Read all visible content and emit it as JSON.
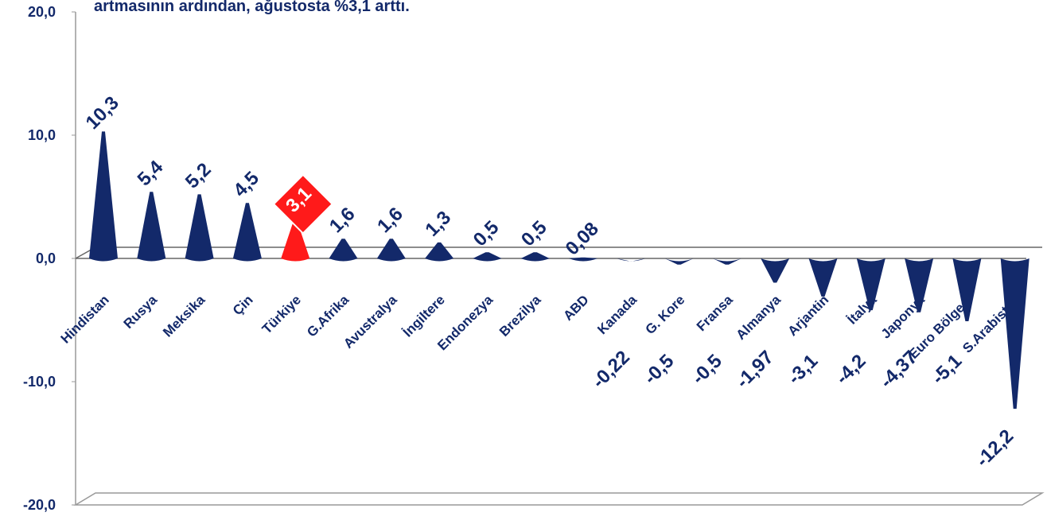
{
  "chart_data": {
    "type": "cone",
    "title": "artmasının ardından, ağustosta %3,1 arttı.",
    "categories": [
      "Hindistan",
      "Rusya",
      "Meksika",
      "Çin",
      "Türkiye",
      "G.Afrika",
      "Avustralya",
      "İngiltere",
      "Endonezya",
      "Brezilya",
      "ABD",
      "Kanada",
      "G. Kore",
      "Fransa",
      "Almanya",
      "Arjantin",
      "İtalya",
      "Japonya",
      "Euro Bölgesi",
      "S.Arabistan"
    ],
    "values": [
      10.3,
      5.4,
      5.2,
      4.5,
      3.1,
      1.6,
      1.6,
      1.3,
      0.5,
      0.5,
      0.08,
      -0.22,
      -0.5,
      -0.5,
      -1.97,
      -3.1,
      -4.2,
      -4.37,
      -5.1,
      -12.2
    ],
    "value_labels": [
      "10,3",
      "5,4",
      "5,2",
      "4,5",
      "3,1",
      "1,6",
      "1,6",
      "1,3",
      "0,5",
      "0,5",
      "0,08",
      "-0,22",
      "-0,5",
      "-0,5",
      "-1,97",
      "-3,1",
      "-4,2",
      "-4,37",
      "-5,1",
      "-12,2"
    ],
    "colors": [
      "#13296a",
      "#13296a",
      "#13296a",
      "#13296a",
      "#ff1a1a",
      "#13296a",
      "#13296a",
      "#13296a",
      "#13296a",
      "#13296a",
      "#13296a",
      "#13296a",
      "#13296a",
      "#13296a",
      "#13296a",
      "#13296a",
      "#13296a",
      "#13296a",
      "#13296a",
      "#13296a"
    ],
    "ylim": [
      -20,
      20
    ],
    "yticks": [
      {
        "value": -20,
        "label": "-20,0"
      },
      {
        "value": -10,
        "label": "-10,0"
      },
      {
        "value": 0,
        "label": "0,0"
      },
      {
        "value": 10,
        "label": "10,0"
      },
      {
        "value": 20,
        "label": "20,0"
      }
    ]
  }
}
